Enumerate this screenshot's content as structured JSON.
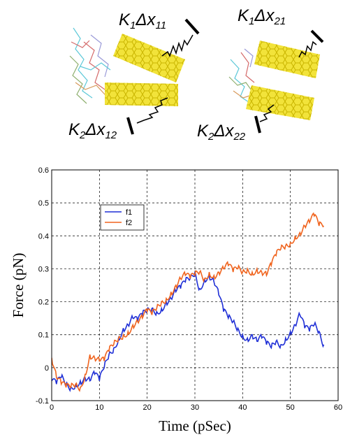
{
  "illustration": {
    "left_labels": {
      "top": {
        "k": "K",
        "k_sub": "1",
        "delta": "Δx",
        "x_sub": "11"
      },
      "bottom": {
        "k": "K",
        "k_sub": "2",
        "delta": "Δx",
        "x_sub": "12"
      }
    },
    "right_labels": {
      "top": {
        "k": "K",
        "k_sub": "1",
        "delta": "Δx",
        "x_sub": "21"
      },
      "bottom": {
        "k": "K",
        "k_sub": "2",
        "delta": "Δx",
        "x_sub": "22"
      }
    },
    "nanotube_color": "#f2e33a"
  },
  "chart_data": {
    "type": "line",
    "title": "",
    "xlabel": "Time (pSec)",
    "ylabel": "Force (pN)",
    "xlim": [
      0,
      60
    ],
    "ylim": [
      -0.1,
      0.6
    ],
    "xticks": [
      "0",
      "10",
      "20",
      "30",
      "40",
      "50",
      "60"
    ],
    "yticks": [
      "-0.1",
      "0",
      "0.1",
      "0.2",
      "0.3",
      "0.4",
      "0.5",
      "0.6"
    ],
    "grid": true,
    "legend_position": "upper-left",
    "series": [
      {
        "name": "f1",
        "color": "#1f2fd6",
        "points": [
          [
            0,
            -0.04
          ],
          [
            1,
            -0.05
          ],
          [
            2,
            -0.03
          ],
          [
            3,
            -0.05
          ],
          [
            4,
            -0.06
          ],
          [
            5,
            -0.05
          ],
          [
            6,
            -0.04
          ],
          [
            7,
            -0.03
          ],
          [
            8,
            -0.04
          ],
          [
            9,
            -0.02
          ],
          [
            10,
            -0.04
          ],
          [
            11,
            0.0
          ],
          [
            12,
            0.04
          ],
          [
            13,
            0.06
          ],
          [
            14,
            0.09
          ],
          [
            15,
            0.12
          ],
          [
            16,
            0.13
          ],
          [
            17,
            0.15
          ],
          [
            18,
            0.14
          ],
          [
            19,
            0.16
          ],
          [
            20,
            0.17
          ],
          [
            21,
            0.18
          ],
          [
            22,
            0.17
          ],
          [
            23,
            0.18
          ],
          [
            24,
            0.2
          ],
          [
            25,
            0.21
          ],
          [
            26,
            0.23
          ],
          [
            27,
            0.24
          ],
          [
            28,
            0.26
          ],
          [
            29,
            0.27
          ],
          [
            30,
            0.29
          ],
          [
            31,
            0.24
          ],
          [
            32,
            0.27
          ],
          [
            33,
            0.28
          ],
          [
            34,
            0.26
          ],
          [
            35,
            0.22
          ],
          [
            36,
            0.17
          ],
          [
            37,
            0.15
          ],
          [
            38,
            0.14
          ],
          [
            39,
            0.12
          ],
          [
            40,
            0.1
          ],
          [
            41,
            0.09
          ],
          [
            42,
            0.1
          ],
          [
            43,
            0.08
          ],
          [
            44,
            0.09
          ],
          [
            45,
            0.07
          ],
          [
            46,
            0.06
          ],
          [
            47,
            0.08
          ],
          [
            48,
            0.07
          ],
          [
            49,
            0.09
          ],
          [
            50,
            0.11
          ],
          [
            51,
            0.13
          ],
          [
            52,
            0.16
          ],
          [
            53,
            0.12
          ],
          [
            54,
            0.11
          ],
          [
            55,
            0.13
          ],
          [
            56,
            0.11
          ],
          [
            57,
            0.07
          ]
        ]
      },
      {
        "name": "f2",
        "color": "#f0641e",
        "points": [
          [
            0,
            0.03
          ],
          [
            1,
            -0.03
          ],
          [
            2,
            -0.05
          ],
          [
            3,
            -0.06
          ],
          [
            4,
            -0.06
          ],
          [
            5,
            -0.05
          ],
          [
            6,
            -0.06
          ],
          [
            7,
            -0.02
          ],
          [
            8,
            0.04
          ],
          [
            9,
            0.03
          ],
          [
            10,
            0.02
          ],
          [
            11,
            0.02
          ],
          [
            12,
            0.05
          ],
          [
            13,
            0.07
          ],
          [
            14,
            0.09
          ],
          [
            15,
            0.1
          ],
          [
            16,
            0.11
          ],
          [
            17,
            0.13
          ],
          [
            18,
            0.14
          ],
          [
            19,
            0.15
          ],
          [
            20,
            0.17
          ],
          [
            21,
            0.16
          ],
          [
            22,
            0.18
          ],
          [
            23,
            0.2
          ],
          [
            24,
            0.21
          ],
          [
            25,
            0.23
          ],
          [
            26,
            0.25
          ],
          [
            27,
            0.27
          ],
          [
            28,
            0.28
          ],
          [
            29,
            0.27
          ],
          [
            30,
            0.28
          ],
          [
            31,
            0.29
          ],
          [
            32,
            0.27
          ],
          [
            33,
            0.29
          ],
          [
            34,
            0.28
          ],
          [
            35,
            0.29
          ],
          [
            36,
            0.3
          ],
          [
            37,
            0.31
          ],
          [
            38,
            0.29
          ],
          [
            39,
            0.3
          ],
          [
            40,
            0.29
          ],
          [
            41,
            0.3
          ],
          [
            42,
            0.29
          ],
          [
            43,
            0.3
          ],
          [
            44,
            0.29
          ],
          [
            45,
            0.28
          ],
          [
            46,
            0.31
          ],
          [
            47,
            0.34
          ],
          [
            48,
            0.36
          ],
          [
            49,
            0.37
          ],
          [
            50,
            0.38
          ],
          [
            51,
            0.4
          ],
          [
            52,
            0.41
          ],
          [
            53,
            0.43
          ],
          [
            54,
            0.44
          ],
          [
            55,
            0.46
          ],
          [
            56,
            0.43
          ],
          [
            57,
            0.43
          ]
        ]
      }
    ]
  }
}
